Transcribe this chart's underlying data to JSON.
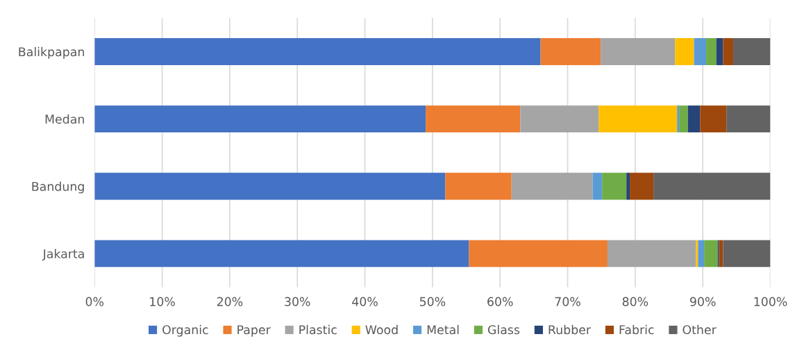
{
  "chart_data": {
    "type": "bar",
    "orientation": "horizontal",
    "stacked": true,
    "categories": [
      "Balikpapan",
      "Medan",
      "Bandung",
      "Jakarta"
    ],
    "series": [
      {
        "name": "Organic",
        "color": "#4472c4",
        "values": [
          66.0,
          49.0,
          51.9,
          55.4
        ]
      },
      {
        "name": "Paper",
        "color": "#ed7d31",
        "values": [
          8.9,
          14.0,
          9.8,
          20.5
        ]
      },
      {
        "name": "Plastic",
        "color": "#a5a5a5",
        "values": [
          11.0,
          11.6,
          12.0,
          13.1
        ]
      },
      {
        "name": "Wood",
        "color": "#ffc000",
        "values": [
          2.8,
          11.6,
          0,
          0.3
        ]
      },
      {
        "name": "Metal",
        "color": "#5b9bd5",
        "values": [
          1.8,
          0.3,
          1.4,
          0.9
        ]
      },
      {
        "name": "Glass",
        "color": "#70ad47",
        "values": [
          1.5,
          1.3,
          3.6,
          2.0
        ]
      },
      {
        "name": "Rubber",
        "color": "#264478",
        "values": [
          1.0,
          1.8,
          0.5,
          0.2
        ]
      },
      {
        "name": "Fabric",
        "color": "#9e480e",
        "values": [
          1.5,
          3.9,
          3.5,
          0.6
        ]
      },
      {
        "name": "Other",
        "color": "#636363",
        "values": [
          5.5,
          6.5,
          17.3,
          7.0
        ]
      }
    ],
    "xlim": [
      0,
      100
    ],
    "xticks": [
      {
        "value": 0,
        "label": "0%"
      },
      {
        "value": 10,
        "label": "10%"
      },
      {
        "value": 20,
        "label": "20%"
      },
      {
        "value": 30,
        "label": "30%"
      },
      {
        "value": 40,
        "label": "40%"
      },
      {
        "value": 50,
        "label": "50%"
      },
      {
        "value": 60,
        "label": "60%"
      },
      {
        "value": 70,
        "label": "70%"
      },
      {
        "value": 80,
        "label": "80%"
      },
      {
        "value": 90,
        "label": "90%"
      },
      {
        "value": 100,
        "label": "100%"
      }
    ],
    "grid": "x",
    "legend": "bottom"
  }
}
